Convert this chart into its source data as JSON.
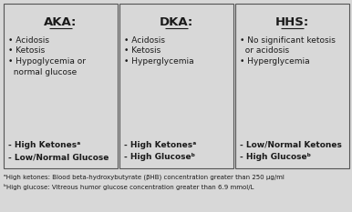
{
  "bg_color": "#d8d8d8",
  "text_color": "#1a1a1a",
  "border_color": "#555555",
  "columns": [
    {
      "title": "AKA:",
      "bullets": [
        "Acidosis",
        "Ketosis",
        "Hypoglycemia or\n  normal glucose"
      ],
      "bold_items": [
        "- High Ketonesᵃ",
        "- Low/Normal Glucose"
      ]
    },
    {
      "title": "DKA:",
      "bullets": [
        "Acidosis",
        "Ketosis",
        "Hyperglycemia"
      ],
      "bold_items": [
        "- High Ketonesᵃ",
        "- High Glucoseᵇ"
      ]
    },
    {
      "title": "HHS:",
      "bullets": [
        "No significant ketosis\n  or acidosis",
        "Hyperglycemia"
      ],
      "bold_items": [
        "- Low/Normal Ketones",
        "- High Glucoseᵇ"
      ]
    }
  ],
  "footnote_a": "ᵃHigh ketones: Blood beta-hydroxybutyrate (βHB) concentration greater than 250 μg/ml",
  "footnote_b": "ᵇHigh glucose: Vitreous humor glucose concentration greater than 6.9 mmol/L"
}
